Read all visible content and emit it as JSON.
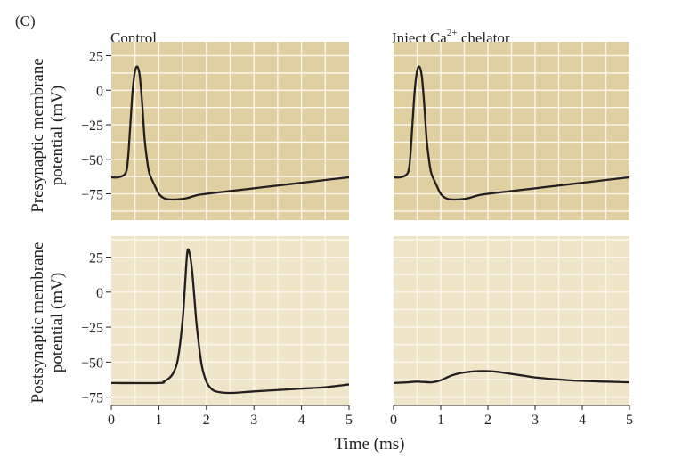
{
  "figure_label": "(C)",
  "ylabels": {
    "top": [
      "Presynaptic membrane",
      "potential (mV)"
    ],
    "bottom": [
      "Postsynaptic membrane",
      "potential (mV)"
    ]
  },
  "xlabel": "Time (ms)",
  "column_titles": {
    "left": "Control",
    "right_pre": "Inject Ca",
    "right_sup": "2+",
    "right_post": " chelator"
  },
  "colors": {
    "presynaptic_bg": "#e0cfa0",
    "postsynaptic_bg": "#efe5c9",
    "grid": "#fbf7ec",
    "trace": "#231f20"
  },
  "chart_data": [
    {
      "type": "line",
      "title": "Control",
      "ylabel": "Presynaptic membrane potential (mV)",
      "xlim": [
        0,
        5
      ],
      "ylim": [
        -94,
        35
      ],
      "yticks": [
        25,
        0,
        -25,
        -50,
        -75
      ],
      "ytick_labels": [
        "25",
        "0",
        "−25",
        "−50",
        "−75"
      ],
      "series": [
        {
          "x": [
            0,
            0.15,
            0.3,
            0.35,
            0.4,
            0.45,
            0.5,
            0.55,
            0.6,
            0.65,
            0.7,
            0.75,
            0.8,
            0.9,
            1.0,
            1.1,
            1.2,
            1.4,
            1.6,
            1.8,
            2.0,
            2.5,
            3.0,
            3.5,
            4.0,
            4.5,
            5.0
          ],
          "y": [
            -63,
            -63,
            -60,
            -50,
            -25,
            0,
            14,
            17,
            10,
            -10,
            -35,
            -50,
            -60,
            -68,
            -75,
            -78,
            -79,
            -79,
            -78,
            -76,
            -75,
            -73,
            -71,
            -69,
            -67,
            -65,
            -63
          ]
        }
      ]
    },
    {
      "type": "line",
      "title": "Inject Ca2+ chelator",
      "ylabel": "Presynaptic membrane potential (mV)",
      "xlim": [
        0,
        5
      ],
      "ylim": [
        -94,
        35
      ],
      "series": [
        {
          "x": [
            0,
            0.15,
            0.3,
            0.35,
            0.4,
            0.45,
            0.5,
            0.55,
            0.6,
            0.65,
            0.7,
            0.75,
            0.8,
            0.9,
            1.0,
            1.1,
            1.2,
            1.4,
            1.6,
            1.8,
            2.0,
            2.5,
            3.0,
            3.5,
            4.0,
            4.5,
            5.0
          ],
          "y": [
            -63,
            -63,
            -60,
            -50,
            -25,
            0,
            14,
            17,
            10,
            -10,
            -35,
            -50,
            -60,
            -68,
            -75,
            -78,
            -79,
            -79,
            -78,
            -76,
            -75,
            -73,
            -71,
            -69,
            -67,
            -65,
            -63
          ]
        }
      ]
    },
    {
      "type": "line",
      "title": "",
      "xlabel": "Time (ms)",
      "ylabel": "Postsynaptic membrane potential (mV)",
      "xlim": [
        0,
        5
      ],
      "ylim": [
        -81,
        40
      ],
      "xticks": [
        0,
        1,
        2,
        3,
        4,
        5
      ],
      "yticks": [
        25,
        0,
        -25,
        -50,
        -75
      ],
      "ytick_labels": [
        "25",
        "0",
        "−25",
        "−50",
        "−75"
      ],
      "series": [
        {
          "x": [
            0,
            1.0,
            1.1,
            1.2,
            1.3,
            1.4,
            1.5,
            1.55,
            1.6,
            1.65,
            1.7,
            1.75,
            1.8,
            1.9,
            2.0,
            2.1,
            2.2,
            2.4,
            2.6,
            3.0,
            3.5,
            4.0,
            4.5,
            5.0
          ],
          "y": [
            -65,
            -65,
            -64,
            -62,
            -58,
            -48,
            -20,
            5,
            29,
            27,
            15,
            -5,
            -25,
            -52,
            -64,
            -69,
            -71,
            -72,
            -72,
            -71,
            -70,
            -69,
            -68,
            -66
          ]
        }
      ]
    },
    {
      "type": "line",
      "title": "",
      "xlabel": "Time (ms)",
      "xlim": [
        0,
        5
      ],
      "ylim": [
        -81,
        40
      ],
      "xticks": [
        0,
        1,
        2,
        3,
        4,
        5
      ],
      "series": [
        {
          "x": [
            0,
            0.3,
            0.5,
            0.8,
            1.0,
            1.2,
            1.4,
            1.6,
            1.8,
            2.0,
            2.2,
            2.4,
            2.6,
            2.8,
            3.0,
            3.5,
            4.0,
            4.5,
            5.0
          ],
          "y": [
            -65,
            -64.5,
            -64,
            -64.5,
            -63,
            -60,
            -58,
            -57,
            -56.5,
            -56.5,
            -57,
            -58,
            -59,
            -60,
            -61,
            -62.5,
            -63.5,
            -64,
            -64.5
          ]
        }
      ]
    }
  ]
}
